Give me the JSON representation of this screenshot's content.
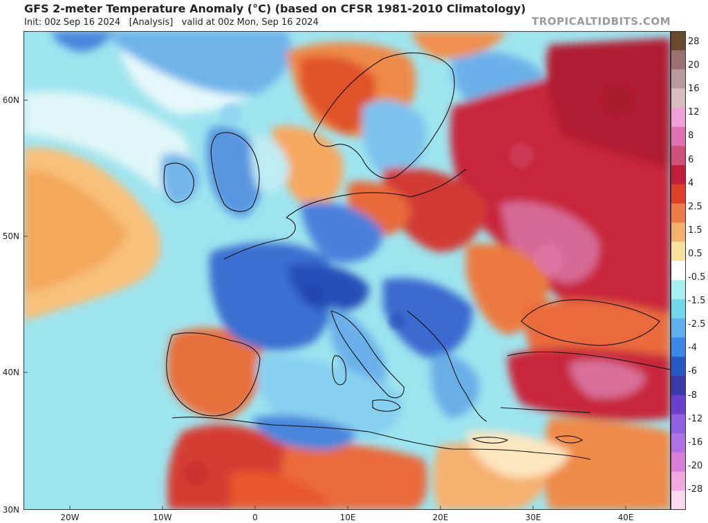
{
  "header": {
    "title": "GFS 2-meter Temperature Anomaly (°C) (based on CFSR 1981-2010 Climatology)",
    "init_line": "Init: 00z Sep 16 2024   [Analysis]   valid at 00z Mon, Sep 16 2024",
    "brand": "TROPICALTIDBITS.COM"
  },
  "axes": {
    "lat_labels": [
      "60N",
      "50N",
      "40N",
      "30N"
    ],
    "lon_labels": [
      "20W",
      "10W",
      "0",
      "10E",
      "20E",
      "30E",
      "40E"
    ]
  },
  "colorbar": {
    "labels": [
      "28",
      "20",
      "16",
      "12",
      "8",
      "6",
      "4",
      "2.5",
      "1.5",
      "0.5",
      "-0.5",
      "-1.5",
      "-2.5",
      "-4",
      "-6",
      "-8",
      "-12",
      "-16",
      "-20",
      "-28"
    ],
    "colors": [
      "#6b4a2b",
      "#9a7070",
      "#b89a9a",
      "#d7bdbf",
      "#f0a0d8",
      "#e070b0",
      "#d0507a",
      "#c2203a",
      "#e0402a",
      "#f07a48",
      "#f5b070",
      "#fae0a0",
      "#ffffff",
      "#a8f0f0",
      "#70d8e8",
      "#60b0f0",
      "#3c88e8",
      "#2858c8",
      "#3a3aa8",
      "#6a40d0",
      "#9060e0",
      "#b070e8",
      "#d880d8",
      "#f0a8e0",
      "#fad8f0"
    ]
  },
  "map": {
    "colors": {
      "cold_strong": "#2a5ab8",
      "cold": "#3c7ad8",
      "cool": "#6aaee8",
      "cool_light": "#9ad8f0",
      "neutral_cyan": "#c8f0f4",
      "near_zero": "#eaf8fa",
      "warm_light": "#fbd08a",
      "warm": "#f39a52",
      "hot": "#e0522c",
      "very_hot": "#c8283a",
      "extreme": "#d86a9a",
      "land_outline": "#111111"
    }
  }
}
